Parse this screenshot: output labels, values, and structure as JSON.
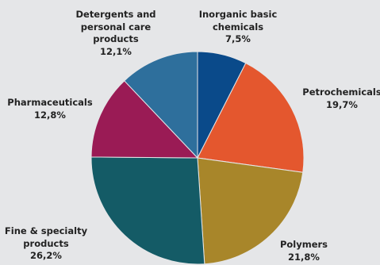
{
  "chart_data": {
    "type": "pie",
    "start_angle_deg": 0,
    "direction": "clockwise",
    "slices": [
      {
        "label_lines": [
          "Inorganic basic",
          "chemicals"
        ],
        "value_label": "7,5%",
        "value": 7.5,
        "color": "#0a4a8a"
      },
      {
        "label_lines": [
          "Petrochemicals"
        ],
        "value_label": "19,7%",
        "value": 19.7,
        "color": "#e4572e"
      },
      {
        "label_lines": [
          "Polymers"
        ],
        "value_label": "21,8%",
        "value": 21.8,
        "color": "#a8862a"
      },
      {
        "label_lines": [
          "Fine & specialty",
          "products"
        ],
        "value_label": "26,2%",
        "value": 26.2,
        "color": "#145b66"
      },
      {
        "label_lines": [
          "Pharmaceuticals"
        ],
        "value_label": "12,8%",
        "value": 12.8,
        "color": "#9a1b55"
      },
      {
        "label_lines": [
          "Detergents and",
          "personal care",
          "products"
        ],
        "value_label": "12,1%",
        "value": 12.1,
        "color": "#2e6f9c"
      }
    ]
  }
}
